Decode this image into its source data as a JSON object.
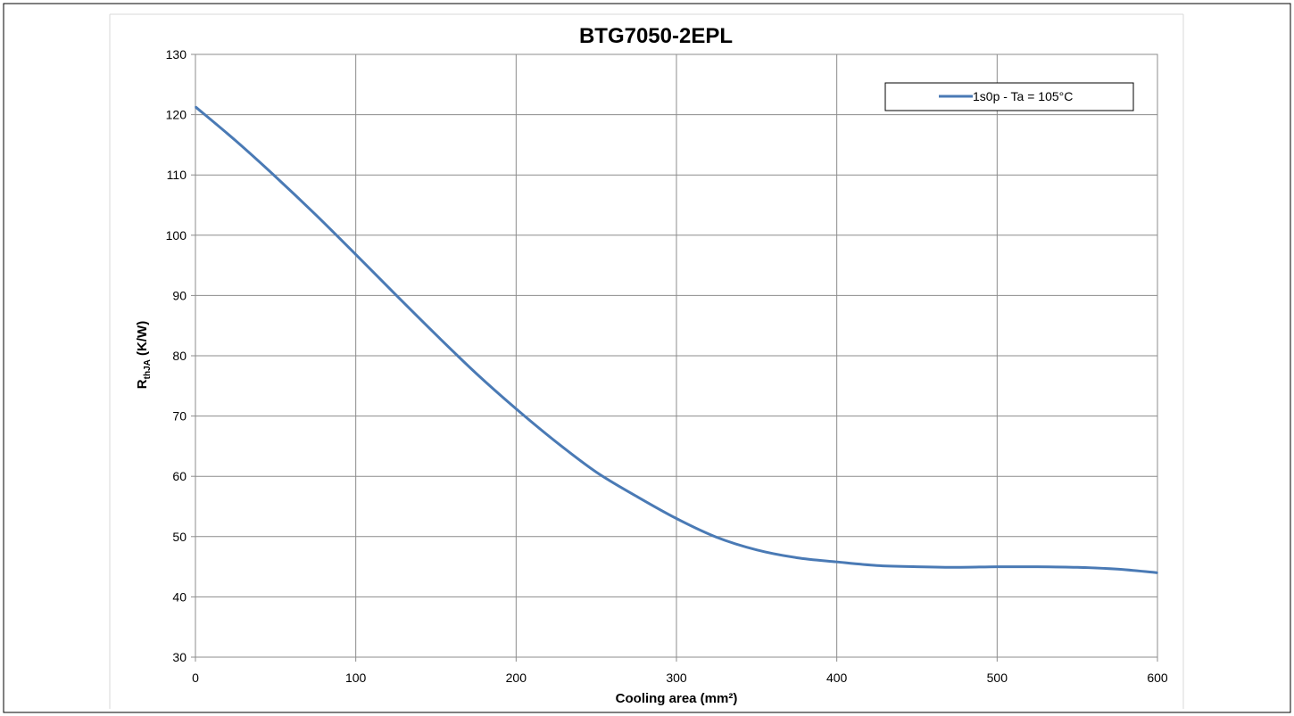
{
  "chart_data": {
    "type": "line",
    "title": "BTG7050-2EPL",
    "xlabel": "Cooling area (mm²)",
    "ylabel": {
      "main": "R",
      "sub": "thJA",
      "rest": " (K/W)"
    },
    "xlim": [
      0,
      600
    ],
    "ylim": [
      30,
      130
    ],
    "xticks": [
      0,
      100,
      200,
      300,
      400,
      500,
      600
    ],
    "yticks": [
      30,
      40,
      50,
      60,
      70,
      80,
      90,
      100,
      110,
      120,
      130
    ],
    "grid": true,
    "legend_position": "top-right",
    "series": [
      {
        "name": "1s0p - Ta = 105°C",
        "color": "#4a7ab5",
        "x": [
          0,
          25,
          50,
          75,
          100,
          125,
          150,
          175,
          200,
          225,
          250,
          275,
          300,
          325,
          350,
          375,
          400,
          425,
          450,
          475,
          500,
          525,
          550,
          575,
          600
        ],
        "y": [
          121.3,
          115.7,
          109.7,
          103.4,
          96.8,
          90.1,
          83.5,
          77.1,
          71.2,
          65.7,
          60.7,
          56.7,
          53.0,
          49.9,
          47.8,
          46.5,
          45.8,
          45.2,
          45.0,
          44.9,
          45.0,
          45.0,
          44.9,
          44.6,
          44.0
        ]
      }
    ]
  }
}
